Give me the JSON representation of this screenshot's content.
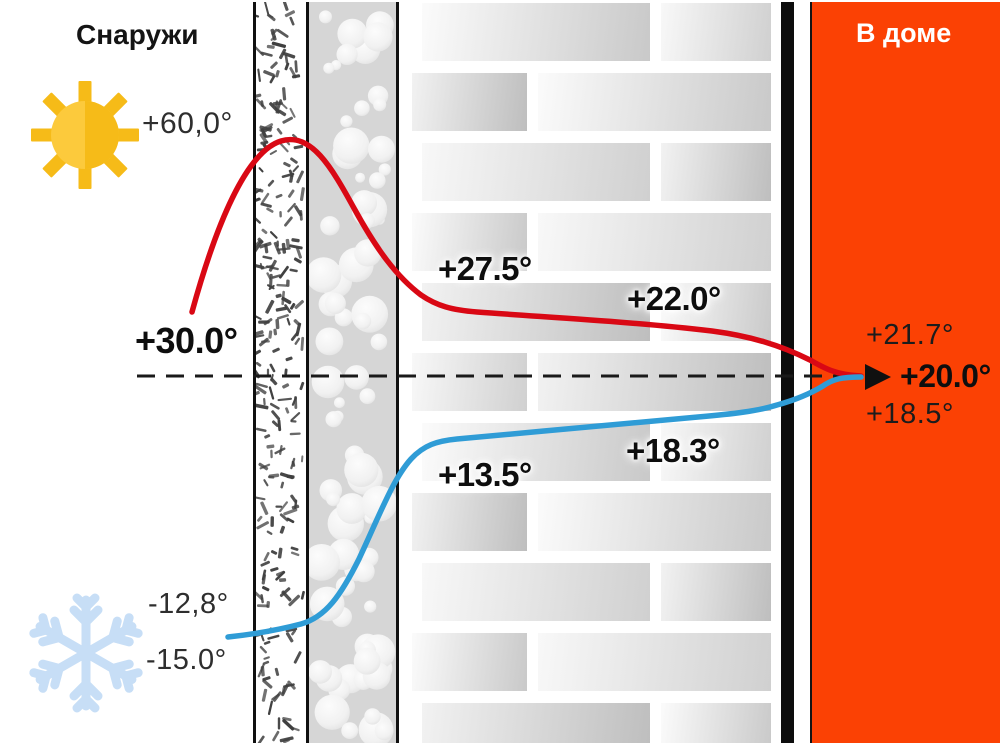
{
  "titles": {
    "outside": "Снаружи",
    "inside": "В доме"
  },
  "labels": {
    "sun_surface_temp": "+60,0°",
    "outside_air_temp": "+30.0°",
    "insulation_hot_side": "+27.5°",
    "brick_mid_hot": "+22.0°",
    "wall_inner_hot": "+21.7°",
    "room_temp": "+20.0°",
    "wall_inner_cold": "+18.5°",
    "brick_mid_cold": "+18.3°",
    "insulation_cold_side": "+13.5°",
    "frost_air_temp_upper": "-12,8°",
    "frost_air_temp_lower": "-15.0°"
  },
  "icons": {
    "sun": "sun-icon",
    "snowflake": "snowflake-icon",
    "room_arrow": "arrow-right-icon"
  },
  "colors": {
    "hot_curve": "#d90814",
    "cold_curve": "#2f9cd6",
    "interior_bg": "#fb4104",
    "dashed_line": "#1a1a1a",
    "sun_main": "#f6bb18",
    "sun_light": "#fcca3c",
    "snowflake": "#c7def6"
  }
}
